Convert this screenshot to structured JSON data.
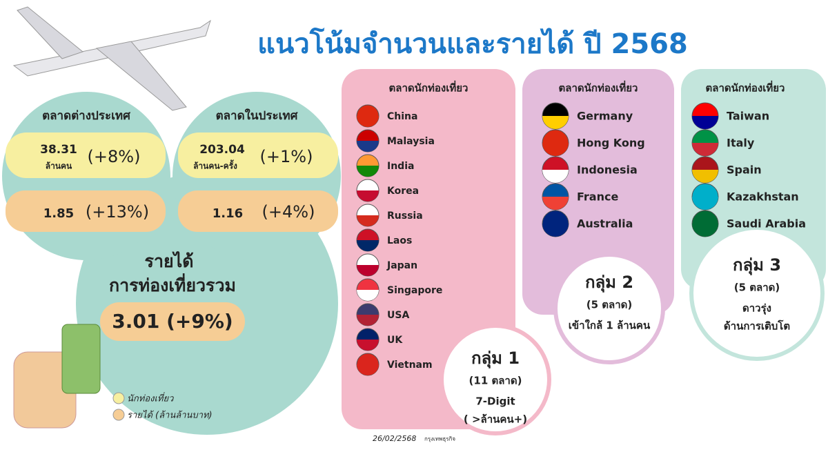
{
  "header": {
    "title": "แนวโน้มจำนวนและรายได้ ปี 2568"
  },
  "foreign": {
    "label": "ตลาดต่างประเทศ",
    "tourists": "38.31",
    "tourists_unit": "ล้านคน",
    "tourists_growth": "(+8%)",
    "revenue": "1.85",
    "revenue_growth": "(+13%)"
  },
  "domestic": {
    "label": "ตลาดในประเทศ",
    "tourists": "203.04",
    "tourists_unit": "ล้านคน-ครั้ง",
    "tourists_growth": "(+1%)",
    "revenue": "1.16",
    "revenue_growth": "(+4%)"
  },
  "total": {
    "label_lines": [
      "รายได้",
      "การท่องเที่ยวรวม"
    ],
    "value": "3.01 (+9%)"
  },
  "legend": [
    "นักท่องเที่ยว",
    "รายได้ (ล้านล้านบาท)"
  ],
  "groups": [
    {
      "header": "ตลาดนักท่องเที่ยว",
      "markets": [
        "China",
        "Malaysia",
        "India",
        "Korea",
        "Russia",
        "Laos",
        "Japan",
        "Singapore",
        "USA",
        "UK",
        "Vietnam"
      ],
      "name": "กลุ่ม 1",
      "count": "(11 ตลาด)",
      "desc": [
        "7-Digit",
        "( >ล้านคน+)"
      ]
    },
    {
      "header": "ตลาดนักท่องเที่ยว",
      "markets": [
        "Germany",
        "Hong Kong",
        "Indonesia",
        "France",
        "Australia"
      ],
      "name": "กลุ่ม 2",
      "count": "(5 ตลาด)",
      "desc": [
        "เข้าใกล้ 1 ล้านคน"
      ]
    },
    {
      "header": "ตลาดนักท่องเที่ยว",
      "markets": [
        "Taiwan",
        "Italy",
        "Spain",
        "Kazakhstan",
        "Saudi Arabia"
      ],
      "name": "กลุ่ม 3",
      "count": "(5 ตลาด)",
      "desc": [
        "ดาวรุ่ง",
        "ด้านการเติบโต"
      ]
    }
  ],
  "footer": {
    "date": "26/02/2568",
    "source": "กรุงเทพธุรกิจ"
  }
}
